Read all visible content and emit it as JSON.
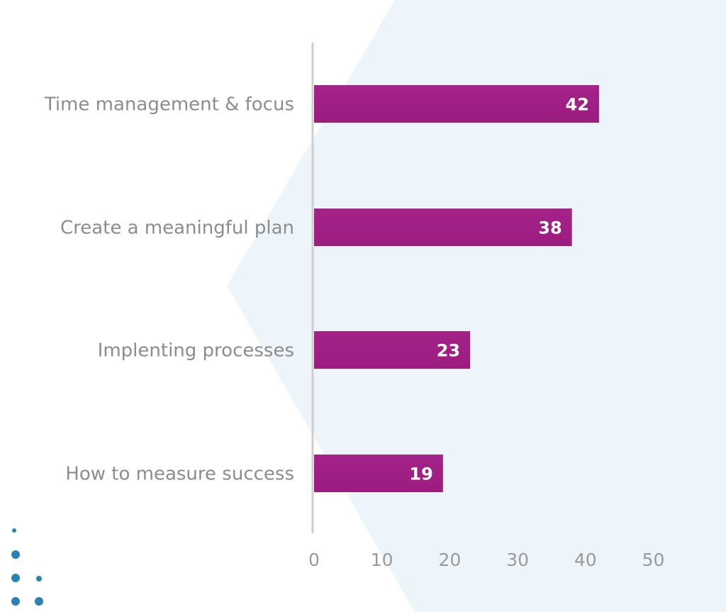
{
  "colors": {
    "bar": "#9b1c7f",
    "bar_highlight": "#a52289",
    "axis": "#cfcfcf",
    "background_shape": "#eef5fa",
    "dots": "#2a82b4",
    "category_text": "#8c8c8c",
    "tick_text": "#9a9a9a",
    "value_text": "#ffffff"
  },
  "chart_data": {
    "type": "bar",
    "orientation": "horizontal",
    "categories": [
      "Time management & focus",
      "Create a meaningful plan",
      "Implenting processes",
      "How to measure success"
    ],
    "values": [
      42,
      38,
      23,
      19
    ],
    "value_labels": [
      "42",
      "38",
      "23",
      "19"
    ],
    "xlim": [
      0,
      50
    ],
    "xticks": [
      0,
      10,
      20,
      30,
      40,
      50
    ],
    "xtick_labels": [
      "0",
      "10",
      "20",
      "30",
      "40",
      "50"
    ],
    "title": "",
    "xlabel": "",
    "ylabel": "",
    "grid": false,
    "legend": "none"
  }
}
